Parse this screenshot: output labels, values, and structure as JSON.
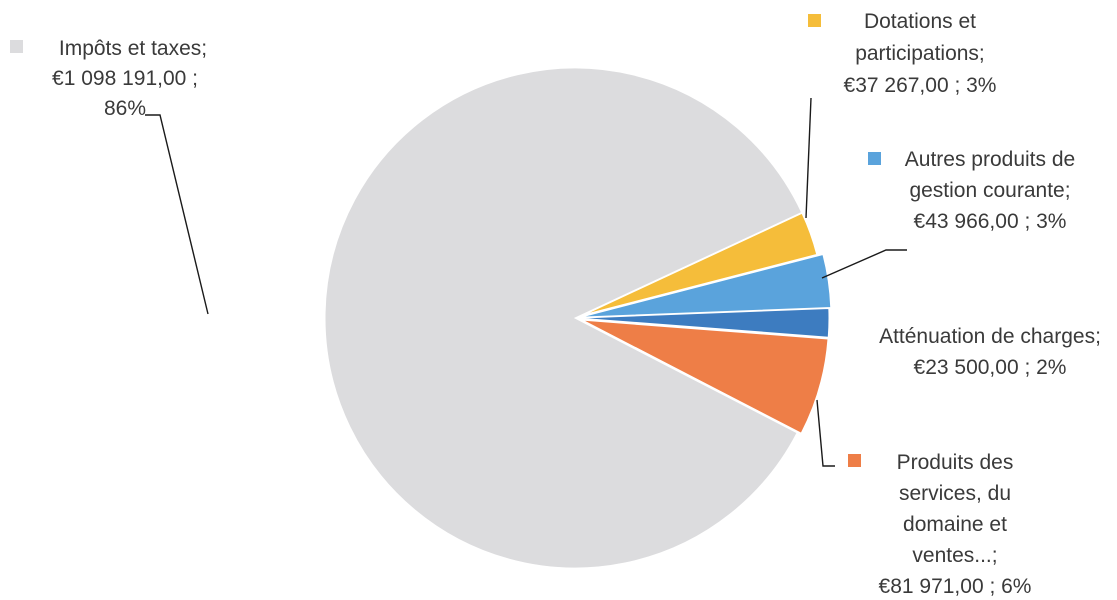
{
  "chart_data": {
    "type": "pie",
    "title": "",
    "slices": [
      {
        "name": "Impôts et taxes",
        "value": 1098191.0,
        "percent": 86,
        "color": "#dcdcde",
        "label": {
          "lines": [
            "Impôts et taxes;",
            "€1 098 191,00 ;",
            "86%"
          ]
        }
      },
      {
        "name": "Dotations et participations",
        "value": 37267.0,
        "percent": 3,
        "color": "#f5bd3a",
        "label": {
          "lines": [
            "Dotations et",
            "participations;",
            "€37 267,00 ; 3%"
          ]
        }
      },
      {
        "name": "Autres produits de gestion courante",
        "value": 43966.0,
        "percent": 3,
        "color": "#5aa3dc",
        "label": {
          "lines": [
            "Autres produits de",
            "gestion courante;",
            "€43 966,00 ; 3%"
          ]
        }
      },
      {
        "name": "Atténuation de charges",
        "value": 23500.0,
        "percent": 2,
        "color": "#3d7cc0",
        "label": {
          "lines": [
            "Atténuation de charges;",
            "€23 500,00 ; 2%"
          ]
        }
      },
      {
        "name": "Produits des services, du domaine et ventes...",
        "value": 81971.0,
        "percent": 6,
        "color": "#ee7e47",
        "label": {
          "lines": [
            "Produits des",
            "services, du",
            "domaine et",
            "ventes...;",
            "€81 971,00 ; 6%"
          ]
        }
      }
    ],
    "legend": "data labels with leader lines",
    "exploded": true
  }
}
